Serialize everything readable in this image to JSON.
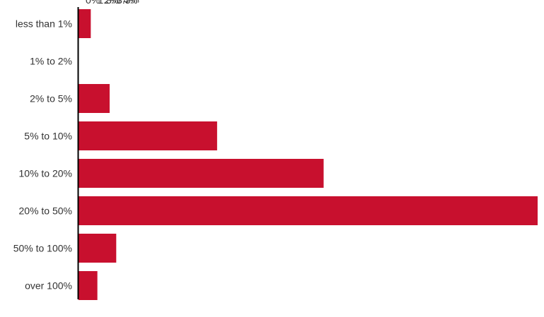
{
  "chart_data": {
    "type": "bar",
    "orientation": "horizontal",
    "categories": [
      "less than 1%",
      "1% to 2%",
      "2% to 5%",
      "5% to 10%",
      "10% to 20%",
      "20% to 50%",
      "50% to 100%",
      "over 100%"
    ],
    "values": [
      1.3,
      0,
      3.3,
      14.7,
      26.0,
      48.7,
      4,
      2
    ],
    "value_labels": [
      "1.3%",
      "0%",
      "3.3%",
      "14.7%",
      "26.0%",
      "48.7%",
      "4%",
      "2%"
    ],
    "title": "",
    "xlabel": "",
    "ylabel": "",
    "xlim": [
      0,
      48.7
    ],
    "grid": false,
    "legend": "none",
    "bar_color": "#c8102e",
    "axis_color": "#000000"
  }
}
